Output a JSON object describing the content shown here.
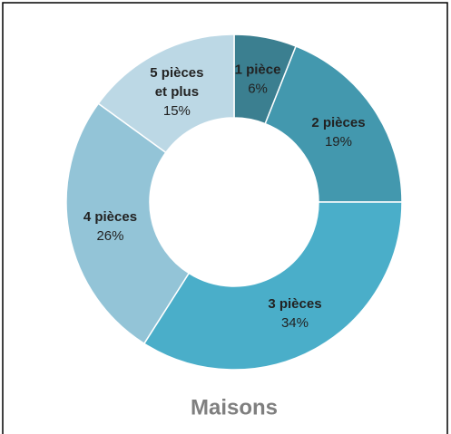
{
  "chart_data": {
    "type": "donut",
    "title": "Maisons",
    "categories": [
      "1 pièce",
      "2 pièces",
      "3 pièces",
      "4 pièces",
      "5 pièces et plus"
    ],
    "values": [
      6,
      19,
      34,
      26,
      15
    ],
    "value_labels": [
      "6%",
      "19%",
      "34%",
      "26%",
      "15%"
    ],
    "colors": [
      "#3b7f90",
      "#4398ae",
      "#4aaec9",
      "#93c4d7",
      "#bcd8e5"
    ]
  }
}
